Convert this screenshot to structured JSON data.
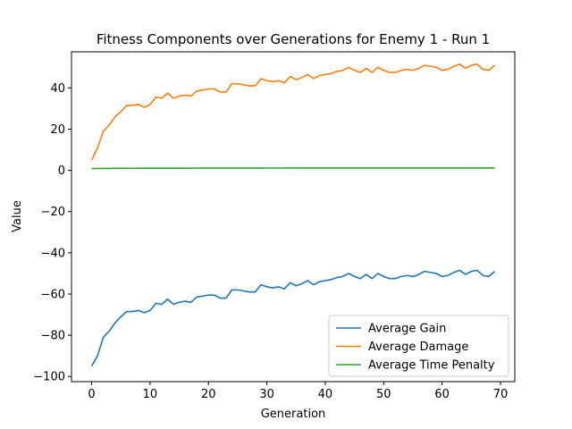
{
  "chart_data": {
    "type": "line",
    "title": "Fitness Components over Generations for Enemy 1 - Run 1",
    "xlabel": "Generation",
    "ylabel": "Value",
    "xlim": [
      -3.45,
      72.45
    ],
    "ylim": [
      -102.5,
      57.5
    ],
    "xticks": [
      0,
      10,
      20,
      30,
      40,
      50,
      60,
      70
    ],
    "yticks": [
      -100,
      -80,
      -60,
      -40,
      -20,
      0,
      20,
      40
    ],
    "grid": false,
    "legend_position": "lower-right",
    "x": [
      0,
      1,
      2,
      3,
      4,
      5,
      6,
      7,
      8,
      9,
      10,
      11,
      12,
      13,
      14,
      15,
      16,
      17,
      18,
      19,
      20,
      21,
      22,
      23,
      24,
      25,
      26,
      27,
      28,
      29,
      30,
      31,
      32,
      33,
      34,
      35,
      36,
      37,
      38,
      39,
      40,
      41,
      42,
      43,
      44,
      45,
      46,
      47,
      48,
      49,
      50,
      51,
      52,
      53,
      54,
      55,
      56,
      57,
      58,
      59,
      60,
      61,
      62,
      63,
      64,
      65,
      66,
      67,
      68,
      69
    ],
    "series": [
      {
        "name": "Average Gain",
        "color": "#1f77b4",
        "values": [
          -95,
          -90,
          -81,
          -78,
          -74,
          -71,
          -68.5,
          -68.5,
          -68,
          -69,
          -68,
          -64.5,
          -65,
          -62.5,
          -65,
          -64,
          -63.5,
          -64,
          -61.5,
          -61,
          -60.5,
          -60.5,
          -62,
          -62,
          -58,
          -58,
          -58.5,
          -59,
          -59,
          -55.5,
          -56.5,
          -57,
          -56.5,
          -57.5,
          -54.5,
          -56,
          -55,
          -53.5,
          -55.5,
          -54,
          -53.5,
          -53,
          -52,
          -51.5,
          -50,
          -51.5,
          -52.5,
          -50.5,
          -52.5,
          -50,
          -51.5,
          -52.5,
          -52.5,
          -51.5,
          -51,
          -51.5,
          -50.5,
          -49,
          -49.5,
          -50,
          -51.5,
          -51,
          -49.5,
          -48.5,
          -50.5,
          -49,
          -48.5,
          -51,
          -51.5,
          -49
        ]
      },
      {
        "name": "Average Damage",
        "color": "#ff7f0e",
        "values": [
          5,
          11,
          19,
          22,
          26,
          28.5,
          31.5,
          31.5,
          32,
          30.5,
          32,
          35.5,
          35,
          37.5,
          35,
          36,
          36.5,
          36,
          38.5,
          39,
          39.5,
          39.5,
          38,
          38,
          42,
          42,
          41.5,
          41,
          41,
          44.5,
          43.5,
          43,
          43.5,
          42.5,
          45.5,
          44,
          45,
          46.5,
          44.5,
          46,
          46.5,
          47,
          48,
          48.5,
          50,
          48.5,
          47.5,
          49.5,
          47.5,
          50,
          48.5,
          47.5,
          47.5,
          48.5,
          49,
          48.5,
          49.5,
          51,
          50.5,
          50,
          48.5,
          49,
          50.5,
          51.5,
          49.5,
          51,
          51.5,
          49,
          48.5,
          51
        ]
      },
      {
        "name": "Average Time Penalty",
        "color": "#2ca02c",
        "values": [
          0.9,
          0.92,
          0.94,
          0.96,
          0.98,
          1.0,
          1.0,
          1.02,
          1.02,
          1.03,
          1.04,
          1.05,
          1.05,
          1.06,
          1.06,
          1.07,
          1.07,
          1.08,
          1.08,
          1.09,
          1.09,
          1.1,
          1.1,
          1.1,
          1.11,
          1.11,
          1.11,
          1.12,
          1.12,
          1.12,
          1.13,
          1.13,
          1.13,
          1.13,
          1.14,
          1.14,
          1.14,
          1.14,
          1.15,
          1.15,
          1.15,
          1.15,
          1.15,
          1.16,
          1.16,
          1.16,
          1.16,
          1.16,
          1.16,
          1.16,
          1.16,
          1.16,
          1.16,
          1.16,
          1.16,
          1.16,
          1.16,
          1.16,
          1.16,
          1.16,
          1.16,
          1.16,
          1.16,
          1.16,
          1.16,
          1.16,
          1.16,
          1.16,
          1.16,
          1.16
        ]
      }
    ]
  }
}
